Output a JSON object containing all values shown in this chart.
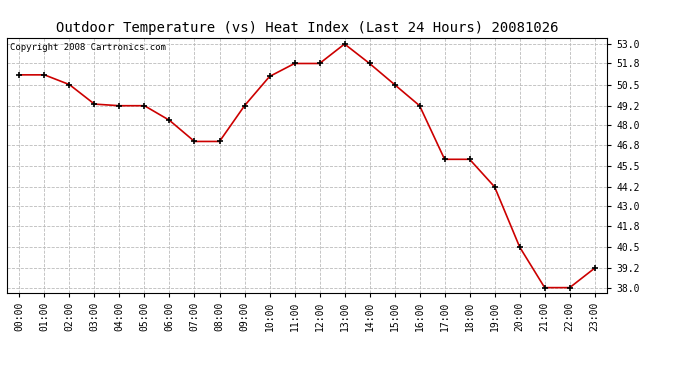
{
  "title": "Outdoor Temperature (vs) Heat Index (Last 24 Hours) 20081026",
  "copyright_text": "Copyright 2008 Cartronics.com",
  "x_labels": [
    "00:00",
    "01:00",
    "02:00",
    "03:00",
    "04:00",
    "05:00",
    "06:00",
    "07:00",
    "08:00",
    "09:00",
    "10:00",
    "11:00",
    "12:00",
    "13:00",
    "14:00",
    "15:00",
    "16:00",
    "17:00",
    "18:00",
    "19:00",
    "20:00",
    "21:00",
    "22:00",
    "23:00"
  ],
  "y_values": [
    51.1,
    51.1,
    50.5,
    49.3,
    49.2,
    49.2,
    48.3,
    47.0,
    47.0,
    49.2,
    51.0,
    51.8,
    51.8,
    53.0,
    51.8,
    50.5,
    49.2,
    45.9,
    45.9,
    44.2,
    40.5,
    38.0,
    38.0,
    39.2
  ],
  "line_color": "#cc0000",
  "marker_color": "#000000",
  "bg_color": "#ffffff",
  "grid_color": "#bbbbbb",
  "yticks": [
    38.0,
    39.2,
    40.5,
    41.8,
    43.0,
    44.2,
    45.5,
    46.8,
    48.0,
    49.2,
    50.5,
    51.8,
    53.0
  ],
  "ylim": [
    37.7,
    53.4
  ],
  "title_fontsize": 10,
  "axis_label_fontsize": 7,
  "copyright_fontsize": 6.5
}
